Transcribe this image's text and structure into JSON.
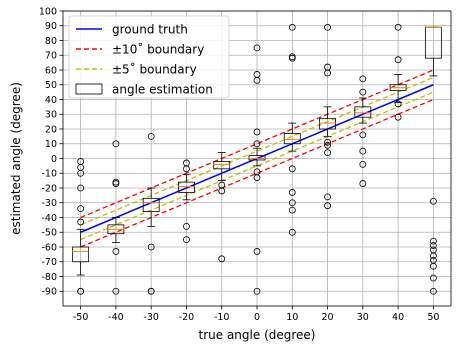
{
  "chart_data": {
    "type": "box",
    "xlabel": "true angle (degree)",
    "ylabel": "estimated angle (degree)",
    "xlim": [
      -55,
      55
    ],
    "ylim": [
      -100,
      100
    ],
    "xticks": [
      -50,
      -40,
      -30,
      -20,
      -10,
      0,
      10,
      20,
      30,
      40,
      50
    ],
    "yticks": [
      -90,
      -80,
      -70,
      -60,
      -50,
      -40,
      -30,
      -20,
      -10,
      0,
      10,
      20,
      30,
      40,
      50,
      60,
      70,
      80,
      90,
      100
    ],
    "grid": true,
    "legend_position": "top-left",
    "legend": [
      {
        "label": "ground truth",
        "style": "solid",
        "color": "#0000ff"
      },
      {
        "label": "±10$^\\circ$ boundary",
        "display": "±10˚ boundary",
        "style": "dashed",
        "color": "#ff0000"
      },
      {
        "label": "±5$^\\circ$ boundary",
        "display": "±5˚ boundary",
        "style": "dashed",
        "color": "#bfbf00"
      },
      {
        "label": "angle estimation",
        "style": "box",
        "color": "#000000"
      }
    ],
    "ground_truth": {
      "x": [
        -50,
        50
      ],
      "y": [
        -50,
        50
      ]
    },
    "boundaries": [
      {
        "name": "+10",
        "offset": 10,
        "color": "#ff0000"
      },
      {
        "name": "-10",
        "offset": -10,
        "color": "#ff0000"
      },
      {
        "name": "+5",
        "offset": 5,
        "color": "#bfbf00"
      },
      {
        "name": "-5",
        "offset": -5,
        "color": "#bfbf00"
      }
    ],
    "boxes": [
      {
        "x": -50,
        "whislo": -79,
        "q1": -70,
        "med": -63,
        "q3": -60,
        "whishi": -48,
        "fliers": [
          -2,
          -6,
          -10,
          -20,
          -34,
          -43,
          -90,
          -90
        ]
      },
      {
        "x": -40,
        "whislo": -57,
        "q1": -51,
        "med": -48,
        "q3": -45,
        "whishi": -40,
        "fliers": [
          10,
          -16,
          -17,
          -63,
          -90
        ]
      },
      {
        "x": -30,
        "whislo": -46,
        "q1": -36,
        "med": -30,
        "q3": -27,
        "whishi": -20,
        "fliers": [
          15,
          -60,
          -90,
          -90
        ]
      },
      {
        "x": -20,
        "whislo": -28,
        "q1": -23,
        "med": -19,
        "q3": -16,
        "whishi": -11,
        "fliers": [
          -3,
          -7,
          -46,
          -55
        ]
      },
      {
        "x": -10,
        "whislo": -15,
        "q1": -7,
        "med": -4,
        "q3": -2,
        "whishi": 4,
        "fliers": [
          -18,
          -22,
          -68
        ]
      },
      {
        "x": 0,
        "whislo": -5,
        "q1": -1,
        "med": 0,
        "q3": 2,
        "whishi": 7,
        "fliers": [
          75,
          57,
          53,
          18,
          10,
          -9,
          -13,
          -63,
          -90
        ]
      },
      {
        "x": 10,
        "whislo": 5,
        "q1": 10,
        "med": 13,
        "q3": 17,
        "whishi": 24,
        "fliers": [
          89,
          69,
          68,
          -7,
          -23,
          -30,
          -35,
          -50
        ]
      },
      {
        "x": 20,
        "whislo": 15,
        "q1": 20,
        "med": 24,
        "q3": 27,
        "whishi": 35,
        "fliers": [
          89,
          62,
          58,
          11,
          9,
          4,
          -26,
          -32
        ]
      },
      {
        "x": 30,
        "whislo": 24,
        "q1": 28,
        "med": 31,
        "q3": 35,
        "whishi": 41,
        "fliers": [
          54,
          45,
          16,
          5,
          -4,
          -17
        ]
      },
      {
        "x": 40,
        "whislo": 38,
        "q1": 46,
        "med": 48,
        "q3": 50,
        "whishi": 57,
        "fliers": [
          89,
          67,
          37,
          28
        ]
      },
      {
        "x": 50,
        "whislo": 56,
        "q1": 68,
        "med": 89,
        "q3": 89,
        "whishi": 89,
        "fliers": [
          -29,
          -56,
          -59,
          -62,
          -66,
          -69,
          -73,
          -81,
          -90
        ]
      }
    ]
  }
}
